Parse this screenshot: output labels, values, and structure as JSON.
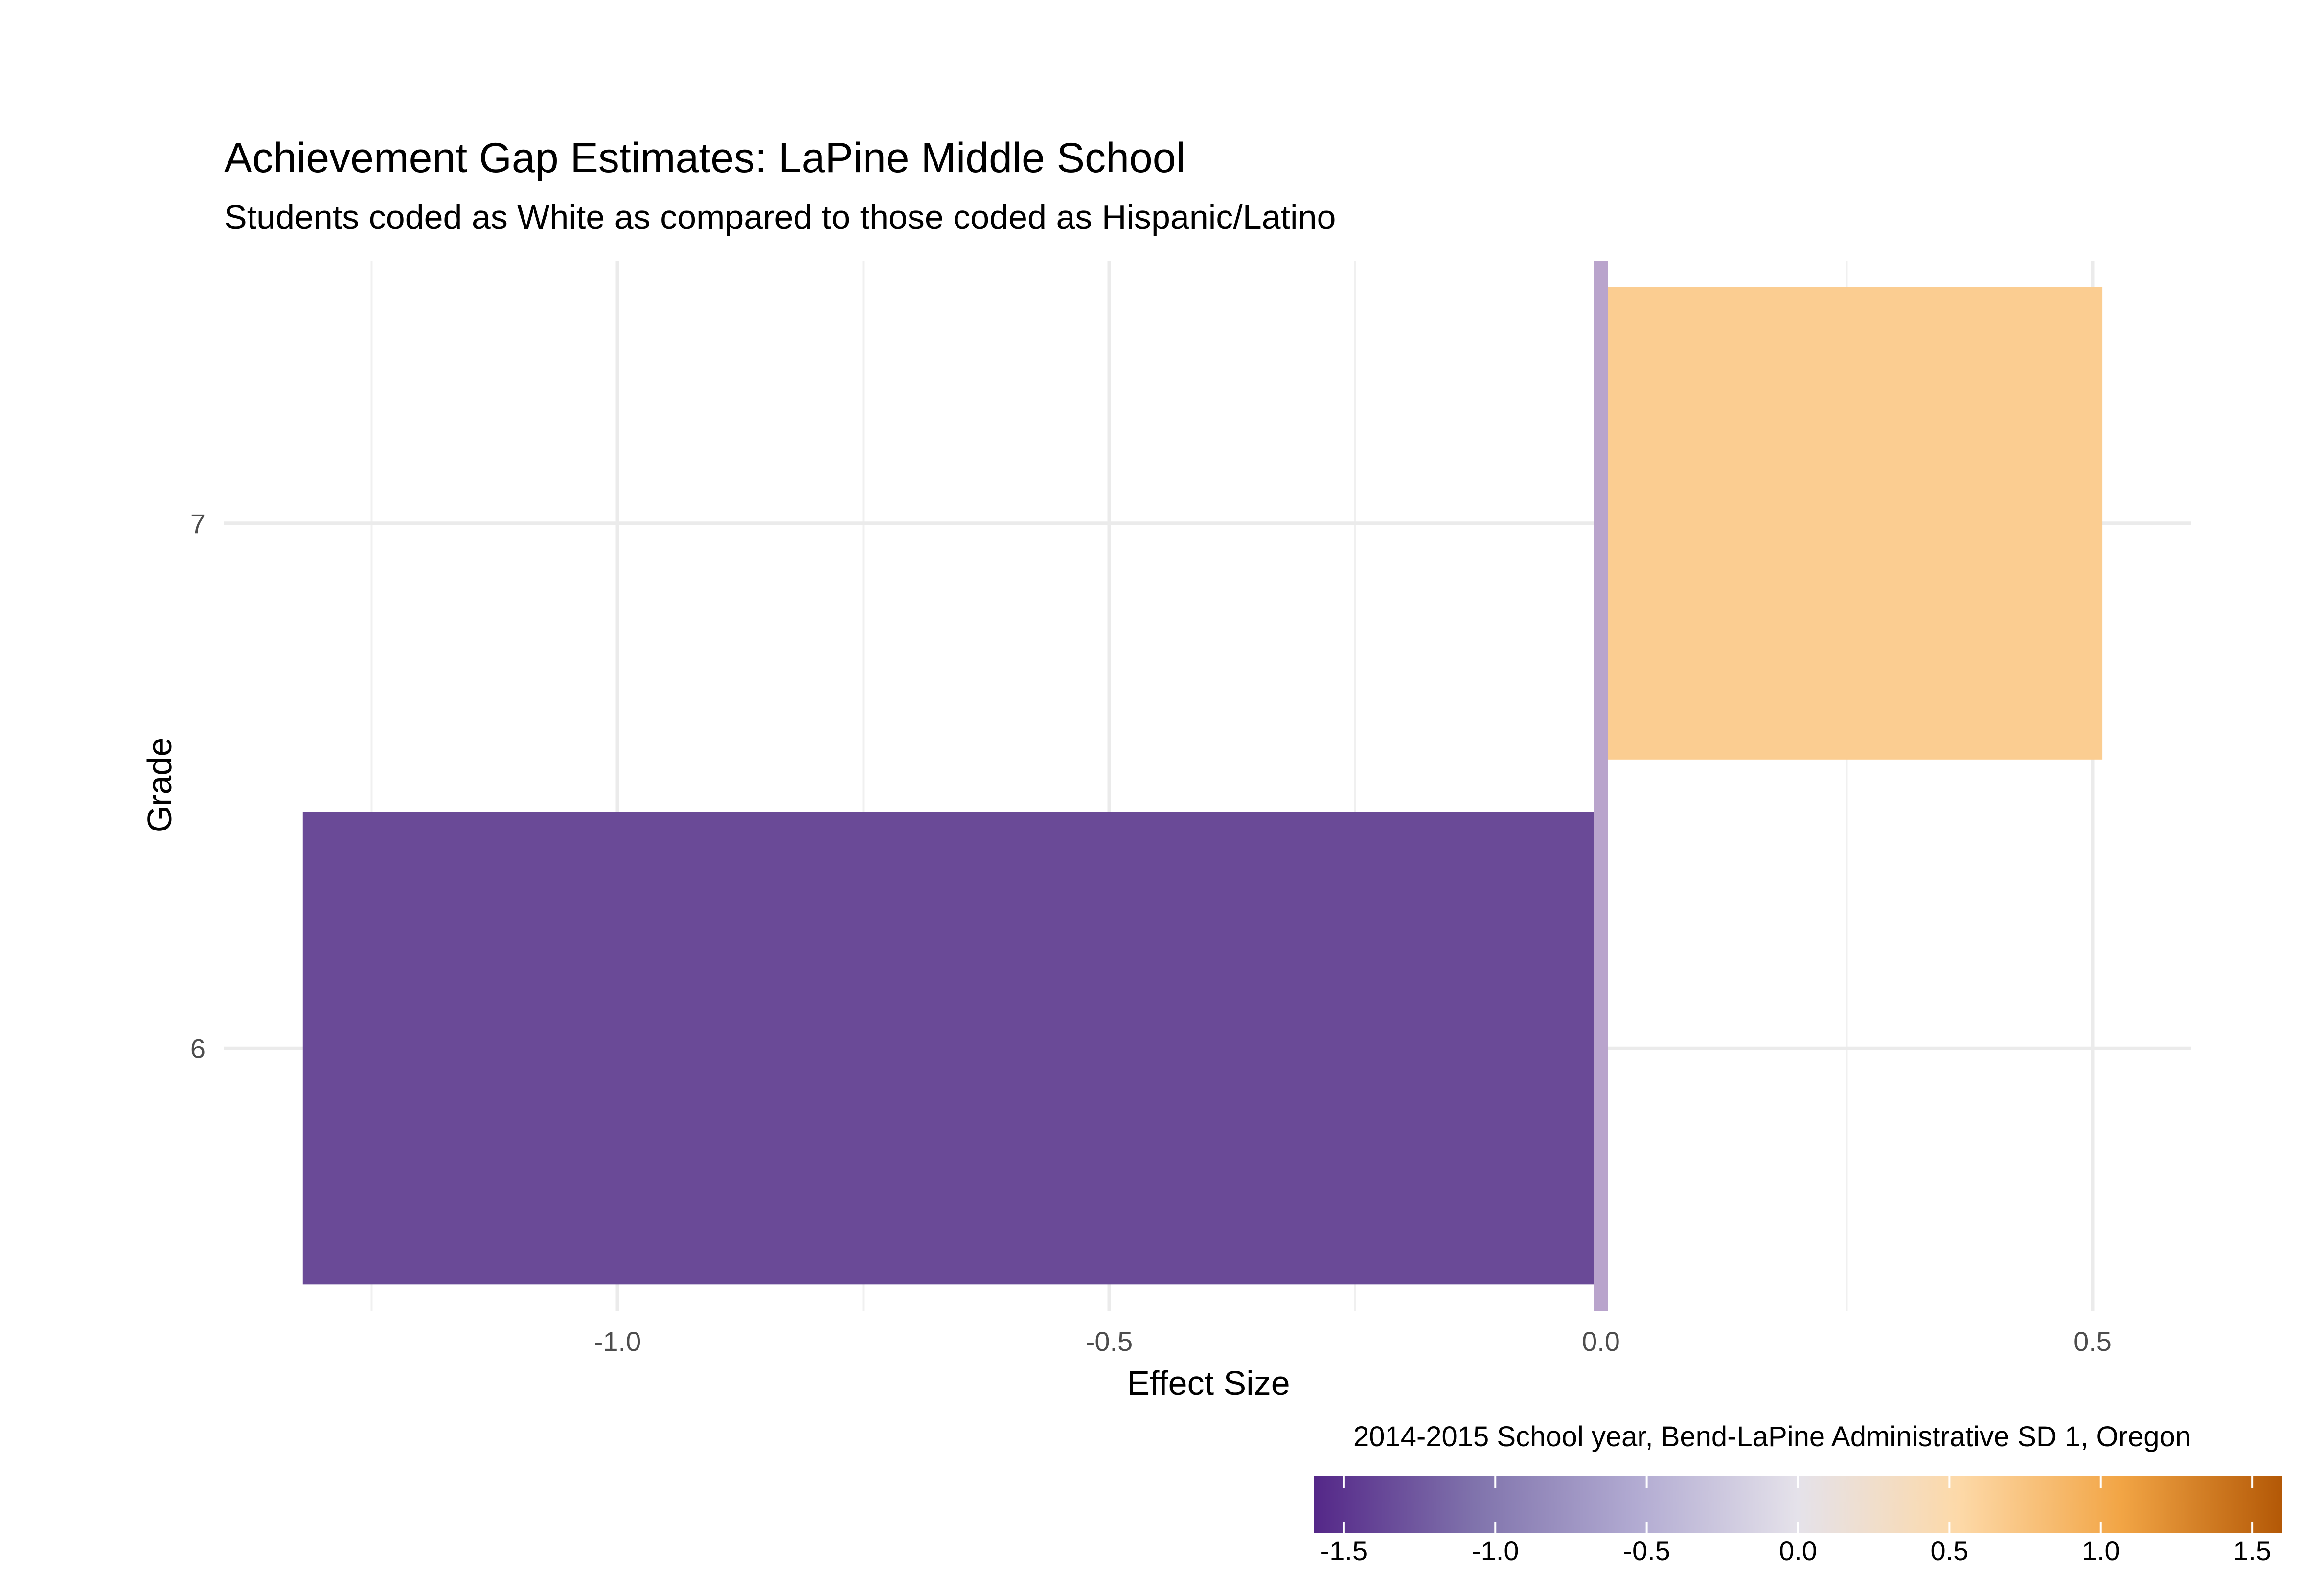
{
  "chart_data": {
    "type": "bar",
    "orientation": "horizontal",
    "title": "Achievement Gap Estimates: LaPine Middle School",
    "subtitle": "Students coded as White as compared to those coded as Hispanic/Latino",
    "xlabel": "Effect Size",
    "ylabel": "Grade",
    "caption": "2014-2015 School year, Bend-LaPine Administrative SD 1, Oregon",
    "categories": [
      "6",
      "7"
    ],
    "values": [
      -1.32,
      0.51
    ],
    "bar_colors": [
      "#6a4a97",
      "#fbcd91"
    ],
    "xlim": [
      -1.4,
      0.6
    ],
    "x_ticks": [
      -1.0,
      -0.5,
      0.0,
      0.5
    ],
    "x_tick_labels": [
      "-1.0",
      "-0.5",
      "0.0",
      "0.5"
    ],
    "x_minor_ticks": [
      -1.25,
      -0.75,
      -0.25,
      0.25
    ],
    "zero_line_color": "#b9a4cc",
    "grid": true,
    "legend": {
      "type": "colorbar",
      "placement": "bottom-right",
      "range": [
        -1.6,
        1.6
      ],
      "ticks": [
        -1.5,
        -1.0,
        -0.5,
        0.0,
        0.5,
        1.0,
        1.5
      ],
      "tick_labels": [
        "-1.5",
        "-1.0",
        "-0.5",
        "0.0",
        "0.5",
        "1.0",
        "1.5"
      ],
      "gradient": [
        "#542788",
        "#8073ac",
        "#b2abd2",
        "#e5e2ea",
        "#fdd9a8",
        "#f2a545",
        "#b35806"
      ]
    }
  }
}
